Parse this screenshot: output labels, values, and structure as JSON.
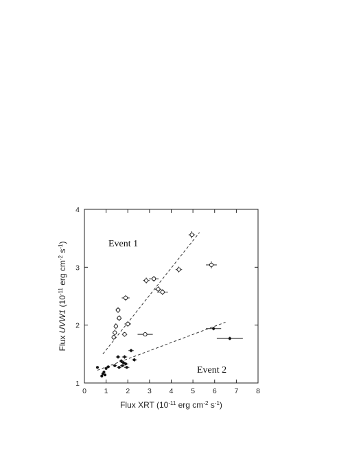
{
  "chart_data": {
    "type": "scatter",
    "xlabel_parts": [
      "Flux XRT (10",
      "-11",
      " erg cm",
      "-2",
      " s",
      "-1",
      ")"
    ],
    "ylabel_parts": [
      "Flux ",
      "UVW1",
      " (10",
      "-11",
      " erg cm",
      "-2",
      " s",
      "-1",
      ")"
    ],
    "xlim": [
      0,
      8
    ],
    "ylim": [
      1,
      4
    ],
    "xticks": [
      "0",
      "1",
      "2",
      "3",
      "4",
      "5",
      "6",
      "7",
      "8"
    ],
    "yticks": [
      "1",
      "2",
      "3",
      "4"
    ],
    "annotations": [
      "Event 1",
      "Event 2"
    ],
    "grid": false,
    "series": [
      {
        "name": "Event 1",
        "marker": "open-circle",
        "points": [
          {
            "x": 1.35,
            "y": 1.79,
            "xerr": 0.1,
            "yerr": 0.04
          },
          {
            "x": 1.4,
            "y": 1.87,
            "xerr": 0.1,
            "yerr": 0.05
          },
          {
            "x": 1.45,
            "y": 1.98,
            "xerr": 0.1,
            "yerr": 0.05
          },
          {
            "x": 1.6,
            "y": 2.12,
            "xerr": 0.12,
            "yerr": 0.05
          },
          {
            "x": 1.55,
            "y": 2.26,
            "xerr": 0.12,
            "yerr": 0.05
          },
          {
            "x": 1.85,
            "y": 1.84,
            "xerr": 0.12,
            "yerr": 0.04
          },
          {
            "x": 2.0,
            "y": 2.02,
            "xerr": 0.15,
            "yerr": 0.05
          },
          {
            "x": 1.9,
            "y": 2.47,
            "xerr": 0.18,
            "yerr": 0.05
          },
          {
            "x": 2.8,
            "y": 1.84,
            "xerr": 0.35,
            "yerr": 0.03
          },
          {
            "x": 2.85,
            "y": 2.77,
            "xerr": 0.15,
            "yerr": 0.05
          },
          {
            "x": 3.2,
            "y": 2.8,
            "xerr": 0.22,
            "yerr": 0.05
          },
          {
            "x": 3.4,
            "y": 2.62,
            "xerr": 0.15,
            "yerr": 0.05
          },
          {
            "x": 3.6,
            "y": 2.57,
            "xerr": 0.25,
            "yerr": 0.05
          },
          {
            "x": 4.35,
            "y": 2.96,
            "xerr": 0.15,
            "yerr": 0.05
          },
          {
            "x": 4.95,
            "y": 3.56,
            "xerr": 0.15,
            "yerr": 0.06
          },
          {
            "x": 5.85,
            "y": 3.04,
            "xerr": 0.25,
            "yerr": 0.06
          }
        ]
      },
      {
        "name": "Event 2",
        "marker": "filled",
        "points": [
          {
            "x": 0.6,
            "y": 1.27,
            "xerr": 0.06,
            "yerr": 0.02
          },
          {
            "x": 0.8,
            "y": 1.12,
            "xerr": 0.06,
            "yerr": 0.02
          },
          {
            "x": 0.85,
            "y": 1.16,
            "xerr": 0.06,
            "yerr": 0.02
          },
          {
            "x": 0.9,
            "y": 1.19,
            "xerr": 0.06,
            "yerr": 0.02
          },
          {
            "x": 0.95,
            "y": 1.14,
            "xerr": 0.06,
            "yerr": 0.02
          },
          {
            "x": 1.0,
            "y": 1.25,
            "xerr": 0.06,
            "yerr": 0.02
          },
          {
            "x": 1.1,
            "y": 1.28,
            "xerr": 0.08,
            "yerr": 0.02
          },
          {
            "x": 1.4,
            "y": 1.3,
            "xerr": 0.1,
            "yerr": 0.02
          },
          {
            "x": 1.55,
            "y": 1.45,
            "xerr": 0.1,
            "yerr": 0.03
          },
          {
            "x": 1.6,
            "y": 1.27,
            "xerr": 0.1,
            "yerr": 0.02
          },
          {
            "x": 1.7,
            "y": 1.38,
            "xerr": 0.1,
            "yerr": 0.03
          },
          {
            "x": 1.75,
            "y": 1.3,
            "xerr": 0.1,
            "yerr": 0.02
          },
          {
            "x": 1.8,
            "y": 1.35,
            "xerr": 0.12,
            "yerr": 0.03
          },
          {
            "x": 1.85,
            "y": 1.45,
            "xerr": 0.12,
            "yerr": 0.03
          },
          {
            "x": 1.9,
            "y": 1.33,
            "xerr": 0.12,
            "yerr": 0.03
          },
          {
            "x": 1.95,
            "y": 1.27,
            "xerr": 0.12,
            "yerr": 0.02
          },
          {
            "x": 2.15,
            "y": 1.56,
            "xerr": 0.12,
            "yerr": 0.03
          },
          {
            "x": 2.3,
            "y": 1.4,
            "xerr": 0.12,
            "yerr": 0.03
          },
          {
            "x": 5.95,
            "y": 1.94,
            "xerr": 0.35,
            "yerr": 0.03
          },
          {
            "x": 6.7,
            "y": 1.77,
            "xerr": 0.6,
            "yerr": 0.03
          }
        ]
      }
    ],
    "fit_lines": [
      {
        "name": "Event 1 fit",
        "style": "dashed",
        "x": [
          0.85,
          5.3
        ],
        "y": [
          1.5,
          3.6
        ]
      },
      {
        "name": "Event 2 fit",
        "style": "dashed",
        "x": [
          0.6,
          6.5
        ],
        "y": [
          1.22,
          2.05
        ]
      }
    ]
  }
}
